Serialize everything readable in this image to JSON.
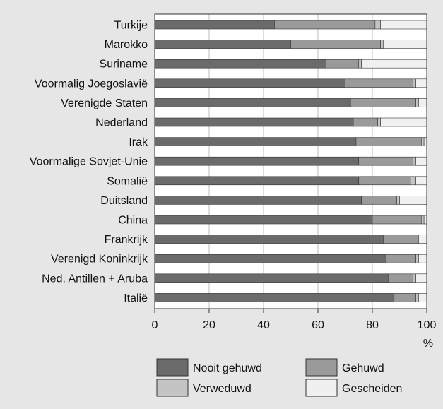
{
  "chart_data": {
    "type": "bar",
    "orientation": "horizontal",
    "stacked": true,
    "categories": [
      "Turkije",
      "Marokko",
      "Suriname",
      "Voormalig Joegoslavië",
      "Verenigde Staten",
      "Nederland",
      "Irak",
      "Voormalige Sovjet-Unie",
      "Somalië",
      "Duitsland",
      "China",
      "Frankrijk",
      "Verenigd Koninkrijk",
      "Ned. Antillen + Aruba",
      "Italië"
    ],
    "series": [
      {
        "name": "Nooit gehuwd",
        "color": "#6b6b6b",
        "values": [
          44,
          50,
          63,
          70,
          72,
          73,
          74,
          75,
          75,
          76,
          80,
          84,
          85,
          86,
          88
        ]
      },
      {
        "name": "Gehuwd",
        "color": "#9a9a9a",
        "values": [
          37,
          33,
          12,
          25,
          24,
          9,
          24,
          20,
          19,
          13,
          18,
          13,
          11,
          9,
          8
        ]
      },
      {
        "name": "Verweduwd",
        "color": "#c4c4c4",
        "values": [
          2,
          1,
          1,
          1,
          1,
          1,
          1,
          1,
          2,
          1,
          1,
          0,
          1,
          1,
          1
        ]
      },
      {
        "name": "Gescheiden",
        "color": "#f0f0f0",
        "values": [
          17,
          16,
          24,
          4,
          3,
          17,
          1,
          4,
          4,
          10,
          1,
          3,
          3,
          4,
          3
        ]
      }
    ],
    "xlim": [
      0,
      100
    ],
    "xticks": [
      0,
      20,
      40,
      60,
      80,
      100
    ],
    "xunit": "%",
    "grid": "vertical",
    "legend_position": "bottom"
  }
}
